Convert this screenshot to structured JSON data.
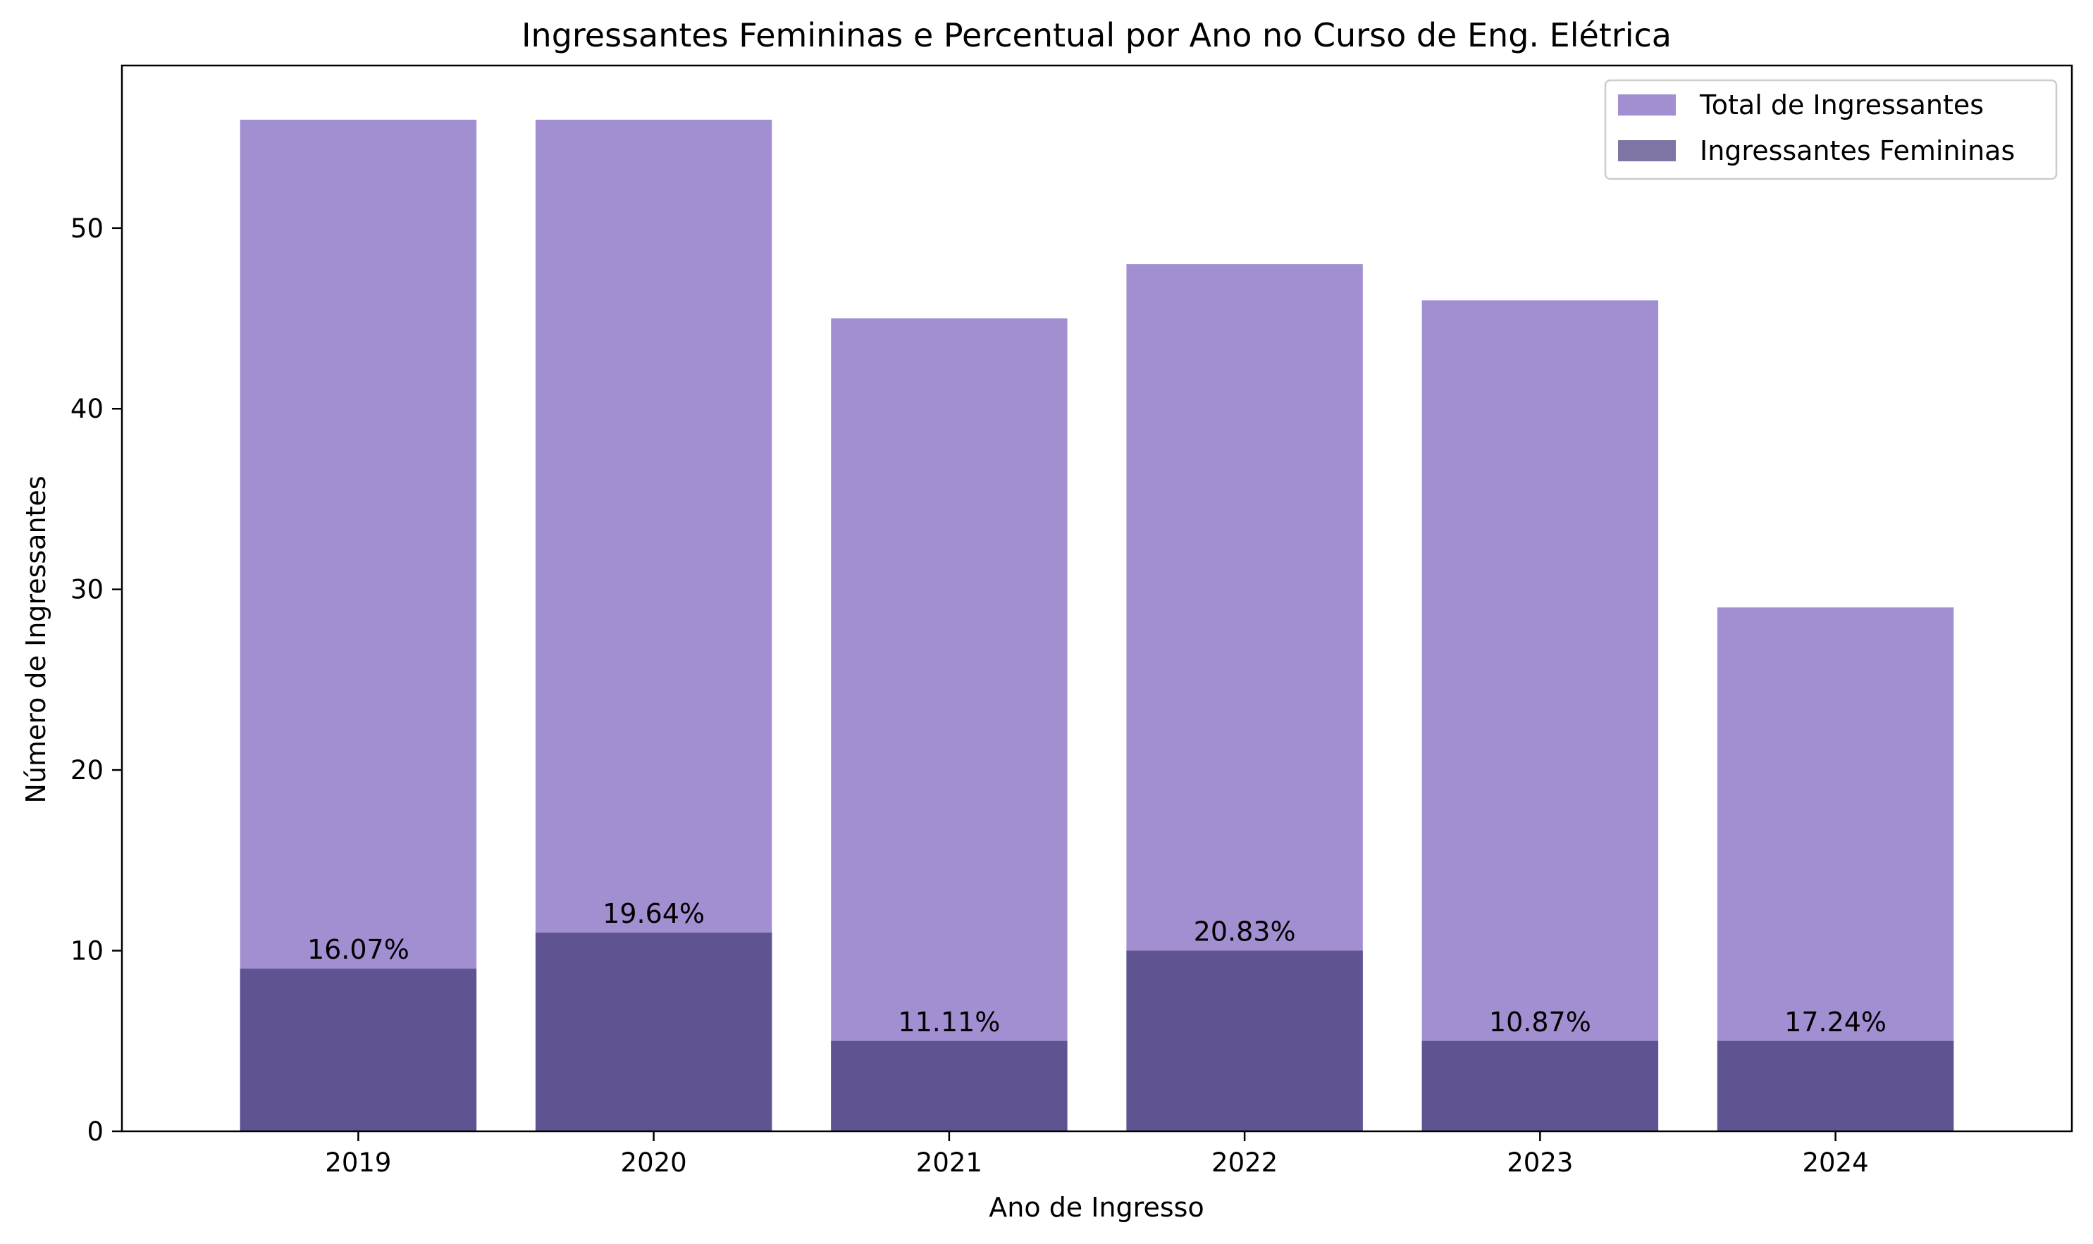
{
  "chart_data": {
    "type": "bar",
    "title": "Ingressantes Femininas e Percentual por Ano no Curso de Eng. Elétrica",
    "xlabel": "Ano de Ingresso",
    "ylabel": "Número de Ingressantes",
    "categories": [
      "2019",
      "2020",
      "2021",
      "2022",
      "2023",
      "2024"
    ],
    "series": [
      {
        "name": "Total de Ingressantes",
        "values": [
          56,
          56,
          45,
          48,
          46,
          29
        ],
        "color": "#a28fd1"
      },
      {
        "name": "Ingressantes Femininas",
        "values": [
          9,
          11,
          5,
          10,
          5,
          5
        ],
        "color": "#5f5391"
      }
    ],
    "data_labels": [
      "16.07%",
      "19.64%",
      "11.11%",
      "20.83%",
      "10.87%",
      "17.24%"
    ],
    "ylim": [
      0,
      59
    ],
    "yticks": [
      0,
      10,
      20,
      30,
      40,
      50
    ],
    "legend": {
      "position": "top-right",
      "entries": [
        {
          "label": "Total de Ingressantes",
          "color": "#a28fd1"
        },
        {
          "label": "Ingressantes Femininas",
          "color": "#7f74a3"
        }
      ]
    },
    "grid": false
  }
}
